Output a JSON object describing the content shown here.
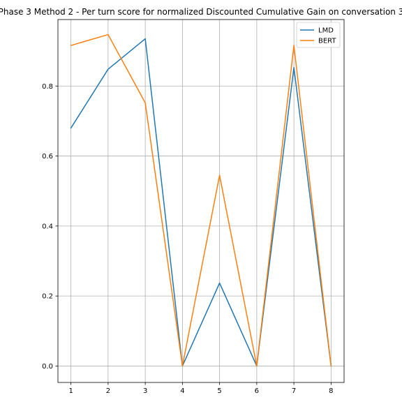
{
  "chart_data": {
    "type": "line",
    "title": "Phase 3 Method 2 - Per turn score for normalized Discounted Cumulative Gain on conversation 3",
    "xlabel": "",
    "ylabel": "",
    "x": [
      1,
      2,
      3,
      4,
      5,
      6,
      7,
      8
    ],
    "xticks": [
      "1",
      "2",
      "3",
      "4",
      "5",
      "6",
      "7",
      "8"
    ],
    "yticks": [
      "0.0",
      "0.2",
      "0.4",
      "0.6",
      "0.8"
    ],
    "xlim": [
      0.65,
      8.35
    ],
    "ylim": [
      -0.047,
      0.99
    ],
    "grid": true,
    "legend_position": "top-right",
    "series": [
      {
        "name": "LMD",
        "color": "#1f77b4",
        "values": [
          0.68,
          0.848,
          0.935,
          0.0,
          0.237,
          0.0,
          0.853,
          0.0
        ]
      },
      {
        "name": "BERT",
        "color": "#ff7f0e",
        "values": [
          0.916,
          0.947,
          0.752,
          0.0,
          0.545,
          0.0,
          0.916,
          0.0
        ]
      }
    ]
  }
}
